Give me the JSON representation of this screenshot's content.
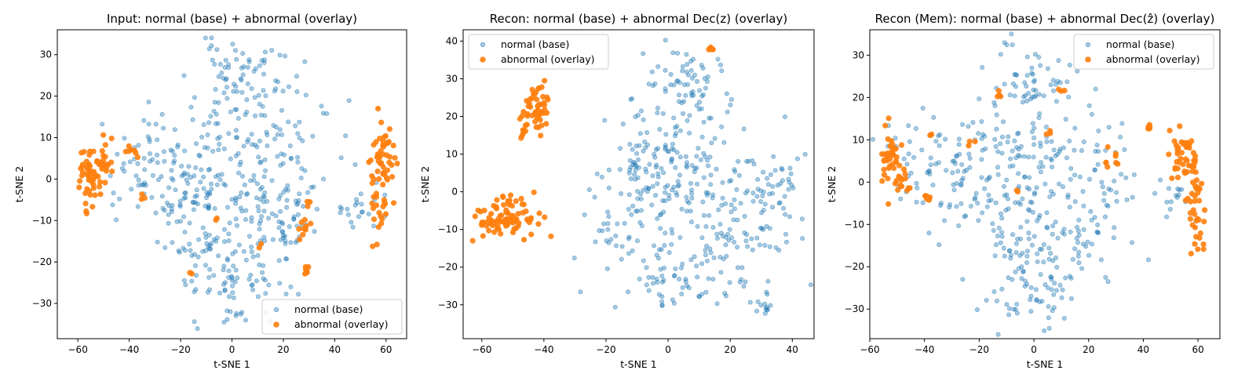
{
  "chart_data": [
    {
      "type": "scatter",
      "title": "Input: normal (base) + abnormal (overlay)",
      "xlabel": "t-SNE 1",
      "ylabel": "t-SNE 2",
      "xlim": [
        -68,
        68
      ],
      "ylim": [
        -38.5,
        36
      ],
      "xticks": [
        -60,
        -40,
        -20,
        0,
        20,
        40,
        60
      ],
      "yticks": [
        -30,
        -20,
        -10,
        0,
        10,
        20,
        30
      ],
      "legend_position": "lower-right",
      "seed": 11,
      "series": [
        {
          "name": "normal (base)",
          "color": "#1f77b4",
          "alpha": 0.4,
          "clusters": [
            {
              "cx": 5,
              "cy": 25,
              "sx": 10,
              "sy": 4,
              "n": 70
            },
            {
              "cx": 5,
              "cy": 10,
              "sx": 14,
              "sy": 5,
              "n": 90
            },
            {
              "cx": 0,
              "cy": -3,
              "sx": 15,
              "sy": 5,
              "n": 90
            },
            {
              "cx": 0,
              "cy": -17,
              "sx": 13,
              "sy": 5,
              "n": 80
            },
            {
              "cx": 0,
              "cy": -27,
              "sx": 9,
              "sy": 4,
              "n": 50
            },
            {
              "cx": -32,
              "cy": 5,
              "sx": 9,
              "sy": 6,
              "n": 60
            },
            {
              "cx": 22,
              "cy": -8,
              "sx": 7,
              "sy": 6,
              "n": 35
            },
            {
              "cx": 50,
              "cy": -6,
              "sx": 5,
              "sy": 3,
              "n": 22
            },
            {
              "cx": -20,
              "cy": -6,
              "sx": 5,
              "sy": 5,
              "n": 25
            }
          ]
        },
        {
          "name": "abnormal (overlay)",
          "color": "#ff7f0e",
          "alpha": 0.9,
          "clusters": [
            {
              "cx": -55,
              "cy": 1,
              "sx": 2.5,
              "sy": 4,
              "n": 50
            },
            {
              "cx": -50,
              "cy": 5,
              "sx": 2,
              "sy": 3,
              "n": 20
            },
            {
              "cx": 58,
              "cy": 0,
              "sx": 2.5,
              "sy": 7,
              "n": 60
            },
            {
              "cx": 60,
              "cy": 9,
              "sx": 1.5,
              "sy": 2,
              "n": 8
            },
            {
              "cx": -38,
              "cy": 7,
              "sx": 1.5,
              "sy": 1.5,
              "n": 7
            },
            {
              "cx": -35,
              "cy": -5,
              "sx": 0.8,
              "sy": 0.8,
              "n": 3
            },
            {
              "cx": 27,
              "cy": -12,
              "sx": 1,
              "sy": 1.5,
              "n": 8
            },
            {
              "cx": 30,
              "cy": -7,
              "sx": 1.2,
              "sy": 1.2,
              "n": 4
            },
            {
              "cx": 29,
              "cy": -22,
              "sx": 0.6,
              "sy": 0.5,
              "n": 6
            },
            {
              "cx": 11,
              "cy": -16,
              "sx": 0.5,
              "sy": 0.5,
              "n": 2
            },
            {
              "cx": -16,
              "cy": -23,
              "sx": 0.5,
              "sy": 0.5,
              "n": 2
            },
            {
              "cx": -6,
              "cy": -9.5,
              "sx": 0.6,
              "sy": 0.5,
              "n": 2
            }
          ]
        }
      ]
    },
    {
      "type": "scatter",
      "title": "Recon: normal (base) + abnormal Dec(z) (overlay)",
      "xlabel": "t-SNE 1",
      "ylabel": "t-SNE 2",
      "xlim": [
        -66,
        47
      ],
      "ylim": [
        -39,
        43
      ],
      "xticks": [
        -60,
        -40,
        -20,
        0,
        20,
        40
      ],
      "yticks": [
        -30,
        -20,
        -10,
        0,
        10,
        20,
        30,
        40
      ],
      "legend_position": "upper-left",
      "seed": 23,
      "series": [
        {
          "name": "normal (base)",
          "color": "#1f77b4",
          "alpha": 0.4,
          "clusters": [
            {
              "cx": 5,
              "cy": 28,
              "sx": 7,
              "sy": 6,
              "n": 60
            },
            {
              "cx": 3,
              "cy": 14,
              "sx": 11,
              "sy": 6,
              "n": 70
            },
            {
              "cx": 5,
              "cy": 0,
              "sx": 14,
              "sy": 6,
              "n": 100
            },
            {
              "cx": 10,
              "cy": -15,
              "sx": 14,
              "sy": 6,
              "n": 90
            },
            {
              "cx": 2,
              "cy": -26,
              "sx": 8,
              "sy": 3,
              "n": 40
            },
            {
              "cx": -10,
              "cy": 3,
              "sx": 5,
              "sy": 7,
              "n": 40
            },
            {
              "cx": 32,
              "cy": 0,
              "sx": 5,
              "sy": 6,
              "n": 45
            },
            {
              "cx": 30,
              "cy": -30,
              "sx": 2,
              "sy": 1.5,
              "n": 12
            },
            {
              "cx": -18,
              "cy": -10,
              "sx": 2,
              "sy": 3,
              "n": 10
            }
          ]
        },
        {
          "name": "abnormal Dec(z)",
          "color": "#ff7f0e",
          "alpha": 0.9,
          "clusters": [
            {
              "cx": -52,
              "cy": -7,
              "sx": 5,
              "sy": 2.5,
              "n": 90
            },
            {
              "cx": -42,
              "cy": 22,
              "sx": 2.5,
              "sy": 2.5,
              "n": 50
            },
            {
              "cx": -47,
              "cy": 16,
              "sx": 0.8,
              "sy": 1.5,
              "n": 8
            },
            {
              "cx": 14,
              "cy": 38,
              "sx": 0.3,
              "sy": 0.3,
              "n": 6
            }
          ]
        }
      ]
    },
    {
      "type": "scatter",
      "title": "Recon (Mem): normal (base) + abnormal Dec(ẑ) (overlay)",
      "xlabel": "t-SNE 1",
      "ylabel": "t-SNE 2",
      "xlim": [
        -60,
        68
      ],
      "ylim": [
        -37,
        36
      ],
      "xticks": [
        -60,
        -40,
        -20,
        0,
        20,
        40,
        60
      ],
      "yticks": [
        -30,
        -20,
        -10,
        0,
        10,
        20,
        30
      ],
      "legend_position": "upper-right",
      "seed": 37,
      "series": [
        {
          "name": "normal (base)",
          "color": "#1f77b4",
          "alpha": 0.4,
          "clusters": [
            {
              "cx": 0,
              "cy": 24,
              "sx": 7,
              "sy": 5,
              "n": 60
            },
            {
              "cx": -5,
              "cy": 8,
              "sx": 18,
              "sy": 5,
              "n": 100
            },
            {
              "cx": -5,
              "cy": -5,
              "sx": 18,
              "sy": 5,
              "n": 100
            },
            {
              "cx": 5,
              "cy": -16,
              "sx": 13,
              "sy": 4,
              "n": 70
            },
            {
              "cx": 0,
              "cy": -27,
              "sx": 9,
              "sy": 4,
              "n": 50
            },
            {
              "cx": -40,
              "cy": 5,
              "sx": 8,
              "sy": 5,
              "n": 40
            },
            {
              "cx": 25,
              "cy": -2,
              "sx": 5,
              "sy": 7,
              "n": 30
            },
            {
              "cx": 50,
              "cy": -4,
              "sx": 2.5,
              "sy": 2,
              "n": 14
            }
          ]
        },
        {
          "name": "abnormal Dec(ẑ)",
          "color": "#ff7f0e",
          "alpha": 0.9,
          "clusters": [
            {
              "cx": -52,
              "cy": 5,
              "sx": 2,
              "sy": 4,
              "n": 40
            },
            {
              "cx": -47,
              "cy": 1,
              "sx": 1.5,
              "sy": 2,
              "n": 10
            },
            {
              "cx": 55,
              "cy": 6,
              "sx": 2.5,
              "sy": 3,
              "n": 40
            },
            {
              "cx": 59,
              "cy": -6,
              "sx": 1.5,
              "sy": 6,
              "n": 40
            },
            {
              "cx": 42,
              "cy": 13,
              "sx": 0.3,
              "sy": 0.3,
              "n": 5
            },
            {
              "cx": -39,
              "cy": -4,
              "sx": 0.8,
              "sy": 0.8,
              "n": 5
            },
            {
              "cx": 28,
              "cy": 6,
              "sx": 1.5,
              "sy": 2,
              "n": 8
            },
            {
              "cx": -13,
              "cy": 21,
              "sx": 1.2,
              "sy": 0.8,
              "n": 4
            },
            {
              "cx": -38,
              "cy": 11,
              "sx": 0.6,
              "sy": 0.6,
              "n": 2
            },
            {
              "cx": 10,
              "cy": 22,
              "sx": 1,
              "sy": 1,
              "n": 3
            },
            {
              "cx": -24,
              "cy": 9,
              "sx": 1,
              "sy": 1,
              "n": 3
            },
            {
              "cx": -6,
              "cy": -2,
              "sx": 0.5,
              "sy": 0.5,
              "n": 2
            },
            {
              "cx": 5,
              "cy": 12,
              "sx": 1,
              "sy": 1,
              "n": 3
            }
          ]
        }
      ]
    }
  ],
  "legends": [
    [
      "normal (base)",
      "abnormal (overlay)"
    ],
    [
      "normal (base)",
      "abnormal (overlay)"
    ],
    [
      "normal (base)",
      "abnormal (overlay)"
    ]
  ]
}
